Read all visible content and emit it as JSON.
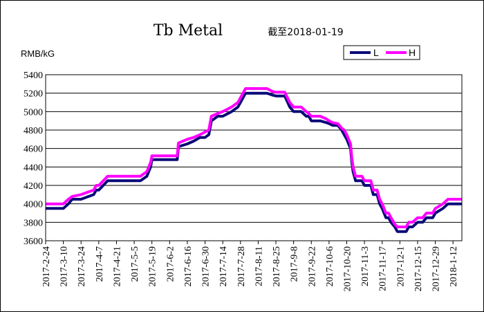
{
  "colors": {
    "L": "#0a0a78",
    "H": "#ff00ff",
    "frame": "#000000",
    "grid": "#000000"
  },
  "chart_data": {
    "type": "line",
    "title": "Tb Metal",
    "subtitle": "截至2018-01-19",
    "ylabel": "RMB/kG",
    "ylim": [
      3600,
      5400
    ],
    "yticks": [
      3600,
      3800,
      4000,
      4200,
      4400,
      4600,
      4800,
      5000,
      5200,
      5400
    ],
    "ytick_labels": [
      "3600",
      "3800",
      "4000",
      "4200",
      "4400",
      "4600",
      "4800",
      "5000",
      "5200",
      "5400"
    ],
    "xlim": [
      "2017-02-24",
      "2018-01-19"
    ],
    "xtick_labels": [
      "2017-2-24",
      "2017-3-10",
      "2017-3-24",
      "2017-4-7",
      "2017-4-21",
      "2017-5-5",
      "2017-5-19",
      "2017-6-2",
      "2017-6-16",
      "2017-6-30",
      "2017-7-14",
      "2017-7-28",
      "2017-8-11",
      "2017-8-25",
      "2017-9-8",
      "2017-9-22",
      "2017-10-6",
      "2017-10-20",
      "2017-11-3",
      "2017-11-17",
      "2017-12-1",
      "2017-12-15",
      "2017-12-29",
      "2018-1-12"
    ],
    "legend": {
      "position": "top-right",
      "entries": [
        "L",
        "H"
      ]
    },
    "grid": "horizontal",
    "series": [
      {
        "name": "L",
        "x": [
          "2017-02-24",
          "2017-03-10",
          "2017-03-14",
          "2017-03-17",
          "2017-03-24",
          "2017-04-03",
          "2017-04-05",
          "2017-04-07",
          "2017-04-14",
          "2017-05-10",
          "2017-05-15",
          "2017-05-18",
          "2017-05-19",
          "2017-06-08",
          "2017-06-09",
          "2017-06-16",
          "2017-06-21",
          "2017-06-26",
          "2017-06-30",
          "2017-07-03",
          "2017-07-05",
          "2017-07-10",
          "2017-07-14",
          "2017-07-21",
          "2017-07-26",
          "2017-07-28",
          "2017-08-01",
          "2017-08-03",
          "2017-08-08",
          "2017-08-11",
          "2017-08-18",
          "2017-08-22",
          "2017-08-25",
          "2017-09-01",
          "2017-09-05",
          "2017-09-08",
          "2017-09-14",
          "2017-09-18",
          "2017-09-20",
          "2017-09-22",
          "2017-09-29",
          "2017-10-04",
          "2017-10-06",
          "2017-10-09",
          "2017-10-13",
          "2017-10-16",
          "2017-10-18",
          "2017-10-20",
          "2017-10-23",
          "2017-10-24",
          "2017-10-25",
          "2017-10-27",
          "2017-11-01",
          "2017-11-03",
          "2017-11-06",
          "2017-11-08",
          "2017-11-10",
          "2017-11-13",
          "2017-11-15",
          "2017-11-17",
          "2017-11-20",
          "2017-11-22",
          "2017-11-24",
          "2017-11-27",
          "2017-11-29",
          "2017-12-01",
          "2017-12-06",
          "2017-12-08",
          "2017-12-11",
          "2017-12-15",
          "2017-12-19",
          "2017-12-22",
          "2017-12-27",
          "2017-12-29",
          "2018-01-04",
          "2018-01-08",
          "2018-01-12",
          "2018-01-15",
          "2018-01-19"
        ],
        "values": [
          3950,
          3950,
          4000,
          4050,
          4050,
          4100,
          4150,
          4150,
          4250,
          4250,
          4300,
          4400,
          4480,
          4480,
          4620,
          4650,
          4680,
          4720,
          4720,
          4750,
          4900,
          4950,
          4950,
          5000,
          5050,
          5100,
          5200,
          5200,
          5200,
          5200,
          5200,
          5180,
          5170,
          5170,
          5050,
          5000,
          5000,
          4950,
          4950,
          4900,
          4900,
          4880,
          4870,
          4850,
          4850,
          4800,
          4750,
          4700,
          4600,
          4450,
          4350,
          4250,
          4250,
          4200,
          4200,
          4200,
          4100,
          4100,
          4000,
          3950,
          3850,
          3850,
          3800,
          3750,
          3700,
          3700,
          3700,
          3750,
          3750,
          3800,
          3800,
          3850,
          3850,
          3900,
          3950,
          4000,
          4000,
          4000,
          4000
        ]
      },
      {
        "name": "H",
        "x": [
          "2017-02-24",
          "2017-03-10",
          "2017-03-14",
          "2017-03-17",
          "2017-03-24",
          "2017-04-03",
          "2017-04-05",
          "2017-04-07",
          "2017-04-14",
          "2017-05-10",
          "2017-05-15",
          "2017-05-18",
          "2017-05-19",
          "2017-06-08",
          "2017-06-09",
          "2017-06-16",
          "2017-06-21",
          "2017-06-26",
          "2017-06-30",
          "2017-07-03",
          "2017-07-05",
          "2017-07-10",
          "2017-07-14",
          "2017-07-21",
          "2017-07-26",
          "2017-07-28",
          "2017-08-01",
          "2017-08-03",
          "2017-08-08",
          "2017-08-11",
          "2017-08-18",
          "2017-08-22",
          "2017-08-25",
          "2017-09-01",
          "2017-09-05",
          "2017-09-08",
          "2017-09-14",
          "2017-09-18",
          "2017-09-20",
          "2017-09-22",
          "2017-09-29",
          "2017-10-04",
          "2017-10-06",
          "2017-10-09",
          "2017-10-13",
          "2017-10-16",
          "2017-10-18",
          "2017-10-20",
          "2017-10-23",
          "2017-10-24",
          "2017-10-25",
          "2017-10-27",
          "2017-11-01",
          "2017-11-03",
          "2017-11-06",
          "2017-11-08",
          "2017-11-10",
          "2017-11-13",
          "2017-11-15",
          "2017-11-17",
          "2017-11-20",
          "2017-11-22",
          "2017-11-24",
          "2017-11-27",
          "2017-11-29",
          "2017-12-01",
          "2017-12-06",
          "2017-12-08",
          "2017-12-11",
          "2017-12-15",
          "2017-12-19",
          "2017-12-22",
          "2017-12-27",
          "2017-12-29",
          "2018-01-04",
          "2018-01-08",
          "2018-01-12",
          "2018-01-15",
          "2018-01-19"
        ],
        "values": [
          4000,
          4000,
          4050,
          4080,
          4100,
          4150,
          4200,
          4200,
          4300,
          4300,
          4350,
          4450,
          4520,
          4520,
          4660,
          4700,
          4720,
          4750,
          4780,
          4800,
          4950,
          4980,
          5000,
          5050,
          5100,
          5150,
          5250,
          5250,
          5250,
          5250,
          5250,
          5220,
          5210,
          5210,
          5100,
          5050,
          5050,
          5000,
          4980,
          4950,
          4950,
          4920,
          4900,
          4880,
          4870,
          4820,
          4800,
          4750,
          4650,
          4500,
          4400,
          4300,
          4300,
          4250,
          4250,
          4250,
          4150,
          4150,
          4050,
          4000,
          3900,
          3900,
          3850,
          3780,
          3750,
          3750,
          3750,
          3800,
          3800,
          3850,
          3850,
          3900,
          3900,
          3950,
          4000,
          4050,
          4050,
          4050,
          4050
        ]
      }
    ]
  }
}
